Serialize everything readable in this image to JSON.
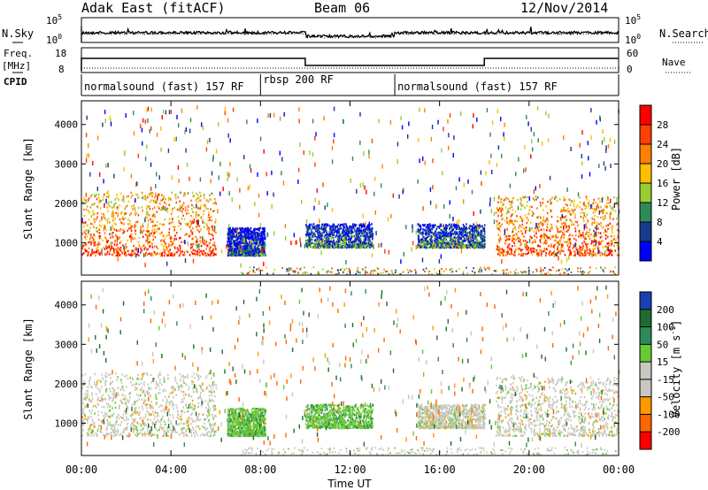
{
  "header": {
    "station": "Adak East (fitACF)",
    "beam": "Beam 06",
    "date": "12/Nov/2014"
  },
  "noise_panel": {
    "left_label": "N.Sky",
    "right_label": "N.Search",
    "left_ticks": [
      "10^5",
      "10^0"
    ],
    "right_ticks": [
      "10^5",
      "10^0"
    ]
  },
  "freq_panel": {
    "left_label_1": "Freq.",
    "left_label_2": "[MHz]",
    "left_label_3": "CPID",
    "right_label": "Nave",
    "left_ticks": [
      "18",
      "8"
    ],
    "right_ticks": [
      "60",
      "0"
    ]
  },
  "cpid_segments": [
    {
      "label": "normalsound (fast) 157 RF",
      "start_hour": 0
    },
    {
      "label": "rbsp 200 RF",
      "start_hour": 8
    },
    {
      "label": "normalsound (fast) 157 RF",
      "start_hour": 14
    }
  ],
  "power_colorbar": {
    "title": "Power [dB]",
    "ticks": [
      "28",
      "24",
      "20",
      "16",
      "12",
      "8",
      "4"
    ],
    "colors": [
      "#ff0000",
      "#ff4000",
      "#ff8000",
      "#ffbf00",
      "#9acd32",
      "#2e8b57",
      "#1a3a8c",
      "#0000ff"
    ]
  },
  "velocity_colorbar": {
    "title": "Velocity [m s^-1]",
    "ticks": [
      "200",
      "100",
      "50",
      "15",
      "-15",
      "-50",
      "-100",
      "-200"
    ],
    "colors": [
      "#1a3fb0",
      "#1f6b2e",
      "#2e8b57",
      "#66cc33",
      "#c8c8c0",
      "#c8c8c0",
      "#ff9900",
      "#ff6600",
      "#ff0000"
    ]
  },
  "chart_data": [
    {
      "type": "heatmap",
      "title": "",
      "xlabel": "Time UT",
      "ylabel": "Slant Range [km]",
      "xlim": [
        0,
        24
      ],
      "ylim": [
        180,
        4600
      ],
      "x_ticks": [
        "00:00",
        "04:00",
        "08:00",
        "12:00",
        "16:00",
        "20:00",
        "00:00"
      ],
      "y_ticks": [
        "1000",
        "2000",
        "3000",
        "4000"
      ],
      "y_tick_values": [
        1000,
        2000,
        3000,
        4000
      ],
      "quantity": "Power [dB]",
      "echo_regions": [
        {
          "t0": 0.0,
          "t1": 6.0,
          "r_low": 700,
          "r_high": 2300,
          "value_db": 26
        },
        {
          "t0": 6.5,
          "t1": 8.2,
          "r_low": 700,
          "r_high": 1400,
          "value_db": 8
        },
        {
          "t0": 10.0,
          "t1": 13.0,
          "r_low": 900,
          "r_high": 1500,
          "value_db": 10
        },
        {
          "t0": 15.0,
          "t1": 18.0,
          "r_low": 900,
          "r_high": 1500,
          "value_db": 10
        },
        {
          "t0": 18.5,
          "t1": 24.0,
          "r_low": 700,
          "r_high": 2200,
          "value_db": 26
        }
      ]
    },
    {
      "type": "heatmap",
      "title": "",
      "xlabel": "Time UT",
      "ylabel": "Slant Range [km]",
      "xlim": [
        0,
        24
      ],
      "ylim": [
        180,
        4600
      ],
      "x_ticks": [
        "00:00",
        "04:00",
        "08:00",
        "12:00",
        "16:00",
        "20:00",
        "00:00"
      ],
      "y_ticks": [
        "1000",
        "2000",
        "3000",
        "4000"
      ],
      "y_tick_values": [
        1000,
        2000,
        3000,
        4000
      ],
      "quantity": "Velocity [m s^-1]",
      "echo_regions": [
        {
          "t0": 0.0,
          "t1": 6.0,
          "r_low": 700,
          "r_high": 2300,
          "value_ms": 0
        },
        {
          "t0": 6.5,
          "t1": 8.2,
          "r_low": 700,
          "r_high": 1400,
          "value_ms": 40
        },
        {
          "t0": 10.0,
          "t1": 13.0,
          "r_low": 900,
          "r_high": 1500,
          "value_ms": 40
        },
        {
          "t0": 15.0,
          "t1": 18.0,
          "r_low": 900,
          "r_high": 1500,
          "value_ms": 0
        },
        {
          "t0": 18.5,
          "t1": 24.0,
          "r_low": 700,
          "r_high": 2200,
          "value_ms": 0
        }
      ]
    }
  ]
}
